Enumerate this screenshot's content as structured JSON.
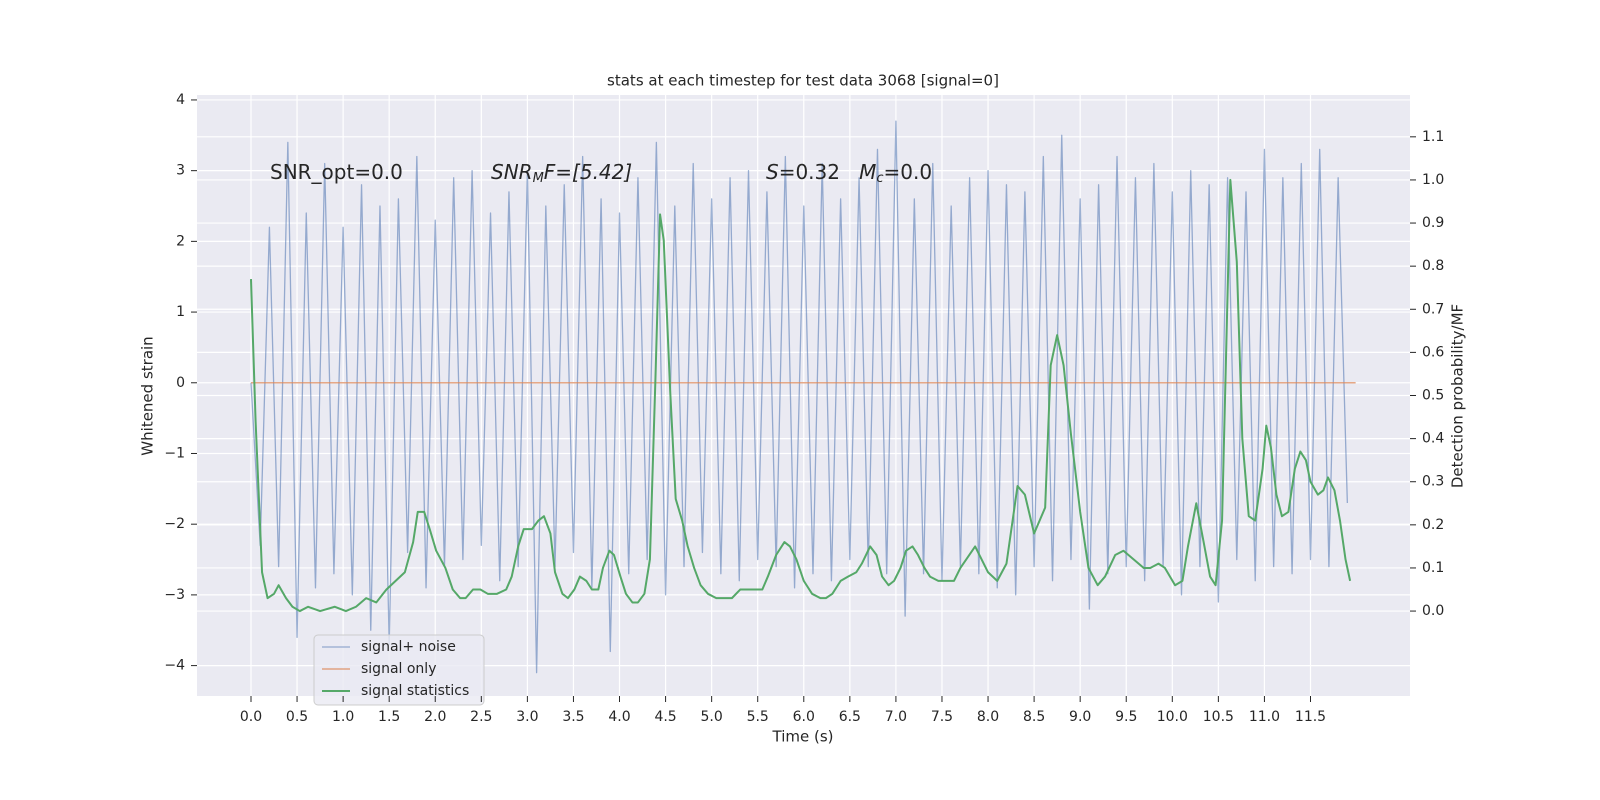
{
  "chart_data": {
    "type": "line",
    "title": "stats at each timestep for test data 3068 [signal=0]",
    "xlabel": "Time (s)",
    "ylabel": "Whitened strain",
    "y2label": "Detection probability/MF",
    "annotations": [
      [
        "SNR_opt=0.0"
      ],
      [
        "SNR",
        "M",
        "F=[5.42]"
      ],
      [
        "S",
        "=0.32   ",
        "M",
        "c",
        "=0.0"
      ]
    ],
    "xlim": [
      -0.586,
      12.58
    ],
    "ylim": [
      -4.43,
      4.07
    ],
    "y2lim": [
      -0.197,
      1.197
    ],
    "xticks": [
      {
        "value": 0,
        "label": "0.0"
      },
      0.5,
      {
        "value": 1,
        "label": "1.0"
      },
      1.5,
      {
        "value": 2,
        "label": "2.0"
      },
      2.5,
      {
        "value": 3,
        "label": "3.0"
      },
      3.5,
      {
        "value": 4,
        "label": "4.0"
      },
      4.5,
      {
        "value": 5,
        "label": "5.0"
      },
      5.5,
      {
        "value": 6,
        "label": "6.0"
      },
      6.5,
      {
        "value": 7,
        "label": "7.0"
      },
      7.5,
      {
        "value": 8,
        "label": "8.0"
      },
      8.5,
      {
        "value": 9,
        "label": "9.0"
      },
      9.5,
      {
        "value": 10,
        "label": "10.0"
      },
      10.5,
      {
        "value": 11,
        "label": "11.0"
      },
      11.5
    ],
    "yticks": [
      {
        "value": -4,
        "label": "−4"
      },
      {
        "value": -3,
        "label": "−3"
      },
      {
        "value": -2,
        "label": "−2"
      },
      {
        "value": -1,
        "label": "−1"
      },
      0,
      1,
      2,
      3,
      4
    ],
    "y2ticks": [
      {
        "value": 0,
        "label": "0.0"
      },
      0.1,
      0.2,
      0.3,
      0.4,
      0.5,
      0.6,
      0.7,
      0.8,
      0.9,
      {
        "value": 1,
        "label": "1.0"
      },
      1.1
    ],
    "grid": true,
    "legend": "lower left",
    "series": [
      {
        "name": "signal+ noise",
        "color": "#4c72b0",
        "x": [
          0.0,
          0.1,
          0.2,
          0.3,
          0.4,
          0.5,
          0.6,
          0.7,
          0.8,
          0.9,
          1.0,
          1.1,
          1.2,
          1.3,
          1.4,
          1.5,
          1.6,
          1.7,
          1.8,
          1.9,
          2.0,
          2.1,
          2.2,
          2.3,
          2.4,
          2.5,
          2.6,
          2.7,
          2.8,
          2.9,
          3.0,
          3.1,
          3.2,
          3.3,
          3.4,
          3.5,
          3.6,
          3.7,
          3.8,
          3.9,
          4.0,
          4.1,
          4.2,
          4.3,
          4.4,
          4.5,
          4.6,
          4.7,
          4.8,
          4.9,
          5.0,
          5.1,
          5.2,
          5.3,
          5.4,
          5.5,
          5.6,
          5.7,
          5.8,
          5.9,
          6.0,
          6.1,
          6.2,
          6.3,
          6.4,
          6.5,
          6.6,
          6.7,
          6.8,
          6.9,
          7.0,
          7.1,
          7.2,
          7.3,
          7.4,
          7.5,
          7.6,
          7.7,
          7.8,
          7.9,
          8.0,
          8.1,
          8.2,
          8.3,
          8.4,
          8.5,
          8.6,
          8.7,
          8.8,
          8.9,
          9.0,
          9.1,
          9.2,
          9.3,
          9.4,
          9.5,
          9.6,
          9.7,
          9.8,
          9.9,
          10.0,
          10.1,
          10.2,
          10.3,
          10.4,
          10.5,
          10.6,
          10.7,
          10.8,
          10.9,
          11.0,
          11.1,
          11.2,
          11.3,
          11.4,
          11.5,
          11.6,
          11.7,
          11.8,
          11.9
        ],
        "values": [
          0.0,
          -2.3,
          2.2,
          -2.6,
          3.4,
          -3.6,
          2.4,
          -2.9,
          3.1,
          -2.7,
          2.2,
          -3.0,
          2.8,
          -3.5,
          2.5,
          -3.7,
          2.6,
          -2.4,
          3.2,
          -2.9,
          2.3,
          -2.6,
          2.9,
          -2.5,
          3.0,
          -2.3,
          2.4,
          -2.8,
          2.7,
          -2.6,
          3.0,
          -4.1,
          2.5,
          -2.6,
          2.8,
          -2.4,
          3.2,
          -2.9,
          2.6,
          -3.8,
          2.4,
          -2.7,
          2.9,
          -2.5,
          3.4,
          -3.0,
          2.5,
          -2.6,
          3.1,
          -2.4,
          2.6,
          -2.7,
          2.9,
          -2.8,
          3.0,
          -2.5,
          2.7,
          -2.6,
          3.2,
          -2.9,
          2.5,
          -2.7,
          3.1,
          -2.8,
          2.6,
          -2.5,
          2.9,
          -2.6,
          3.3,
          -2.7,
          3.7,
          -3.3,
          2.6,
          -2.7,
          3.1,
          -2.8,
          2.5,
          -2.6,
          2.9,
          -2.7,
          3.0,
          -2.9,
          2.8,
          -3.0,
          2.7,
          -2.6,
          3.2,
          -2.8,
          3.5,
          -2.5,
          2.6,
          -3.2,
          2.8,
          -2.7,
          3.2,
          -2.6,
          2.9,
          -2.8,
          3.1,
          -2.6,
          2.7,
          -3.0,
          3.0,
          -2.6,
          2.8,
          -3.1,
          2.9,
          -2.5,
          2.7,
          -2.8,
          3.3,
          -2.6,
          2.9,
          -2.7,
          3.1,
          -2.5,
          3.3,
          -2.6,
          2.9,
          -1.7
        ]
      },
      {
        "name": "signal only",
        "color": "#dd8452",
        "x": [
          0.0,
          11.99
        ],
        "values": [
          0,
          0
        ]
      },
      {
        "name": "signal statistics",
        "color": "#55a868",
        "axis": "y2",
        "x": [
          0.0,
          0.05,
          0.12,
          0.18,
          0.25,
          0.3,
          0.38,
          0.45,
          0.53,
          0.62,
          0.75,
          0.91,
          1.03,
          1.14,
          1.25,
          1.36,
          1.47,
          1.57,
          1.67,
          1.76,
          1.81,
          1.88,
          1.94,
          2.01,
          2.11,
          2.19,
          2.27,
          2.33,
          2.41,
          2.49,
          2.57,
          2.67,
          2.77,
          2.83,
          2.9,
          2.96,
          3.05,
          3.12,
          3.18,
          3.25,
          3.3,
          3.38,
          3.44,
          3.51,
          3.57,
          3.64,
          3.7,
          3.77,
          3.82,
          3.89,
          3.94,
          4.01,
          4.07,
          4.14,
          4.2,
          4.27,
          4.33,
          4.39,
          4.44,
          4.48,
          4.55,
          4.61,
          4.68,
          4.74,
          4.81,
          4.88,
          4.96,
          5.05,
          5.14,
          5.22,
          5.31,
          5.4,
          5.48,
          5.55,
          5.61,
          5.7,
          5.79,
          5.85,
          5.92,
          6.0,
          6.09,
          6.18,
          6.24,
          6.31,
          6.4,
          6.48,
          6.57,
          6.63,
          6.72,
          6.79,
          6.85,
          6.92,
          6.98,
          7.05,
          7.11,
          7.18,
          7.24,
          7.31,
          7.37,
          7.46,
          7.55,
          7.63,
          7.7,
          7.86,
          8.0,
          8.1,
          8.2,
          8.32,
          8.4,
          8.5,
          8.62,
          8.68,
          8.75,
          8.82,
          8.9,
          9.0,
          9.09,
          9.19,
          9.27,
          9.38,
          9.47,
          9.58,
          9.69,
          9.76,
          9.85,
          9.92,
          10.03,
          10.11,
          10.17,
          10.26,
          10.34,
          10.41,
          10.47,
          10.54,
          10.63,
          10.7,
          10.76,
          10.83,
          10.9,
          10.98,
          11.02,
          11.07,
          11.13,
          11.19,
          11.26,
          11.33,
          11.39,
          11.45,
          11.5,
          11.58,
          11.64,
          11.69,
          11.76,
          11.82,
          11.88,
          11.93
        ],
        "values": [
          0.77,
          0.44,
          0.09,
          0.03,
          0.04,
          0.06,
          0.03,
          0.01,
          0.0,
          0.01,
          0.0,
          0.01,
          0.0,
          0.01,
          0.03,
          0.02,
          0.05,
          0.07,
          0.09,
          0.16,
          0.23,
          0.23,
          0.19,
          0.14,
          0.1,
          0.05,
          0.03,
          0.03,
          0.05,
          0.05,
          0.04,
          0.04,
          0.05,
          0.08,
          0.15,
          0.19,
          0.19,
          0.21,
          0.22,
          0.18,
          0.09,
          0.04,
          0.03,
          0.05,
          0.08,
          0.07,
          0.05,
          0.05,
          0.1,
          0.14,
          0.13,
          0.08,
          0.04,
          0.02,
          0.02,
          0.04,
          0.12,
          0.54,
          0.92,
          0.86,
          0.51,
          0.26,
          0.21,
          0.15,
          0.1,
          0.06,
          0.04,
          0.03,
          0.03,
          0.03,
          0.05,
          0.05,
          0.05,
          0.05,
          0.08,
          0.13,
          0.16,
          0.15,
          0.12,
          0.07,
          0.04,
          0.03,
          0.03,
          0.04,
          0.07,
          0.08,
          0.09,
          0.11,
          0.15,
          0.13,
          0.08,
          0.06,
          0.07,
          0.1,
          0.14,
          0.15,
          0.13,
          0.1,
          0.08,
          0.07,
          0.07,
          0.07,
          0.1,
          0.15,
          0.09,
          0.07,
          0.11,
          0.29,
          0.27,
          0.18,
          0.24,
          0.57,
          0.64,
          0.57,
          0.41,
          0.23,
          0.1,
          0.06,
          0.08,
          0.13,
          0.14,
          0.12,
          0.1,
          0.1,
          0.11,
          0.1,
          0.06,
          0.07,
          0.15,
          0.25,
          0.16,
          0.08,
          0.06,
          0.21,
          1.0,
          0.81,
          0.4,
          0.22,
          0.21,
          0.33,
          0.43,
          0.38,
          0.27,
          0.22,
          0.23,
          0.33,
          0.37,
          0.35,
          0.3,
          0.27,
          0.28,
          0.31,
          0.28,
          0.21,
          0.12,
          0.07
        ]
      }
    ]
  }
}
